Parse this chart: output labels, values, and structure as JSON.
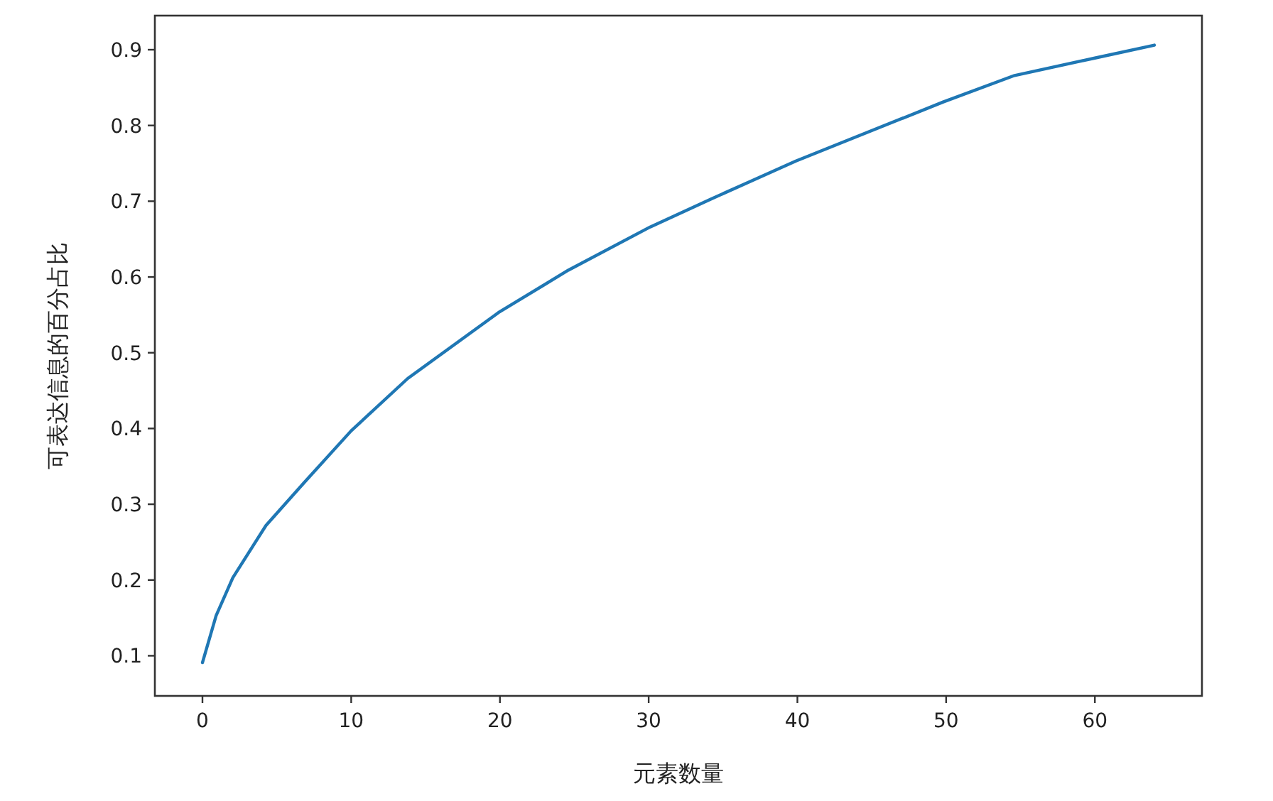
{
  "chart_data": {
    "type": "line",
    "xlabel": "元素数量",
    "ylabel": "可表达信息的百分占比",
    "x": [
      0,
      0.92,
      2.04,
      4.27,
      6.81,
      10.0,
      13.8,
      19.9,
      24.6,
      30.1,
      34.2,
      39.9,
      49.8,
      54.6,
      60,
      64
    ],
    "series": [
      {
        "color": "#1f77b4",
        "values": [
          0.091,
          0.153,
          0.203,
          0.272,
          0.328,
          0.397,
          0.466,
          0.553,
          0.609,
          0.666,
          0.703,
          0.753,
          0.831,
          0.866,
          0.889,
          0.906
        ]
      }
    ],
    "xlim": [
      -3.2,
      67.2
    ],
    "ylim": [
      0.047,
      0.945
    ],
    "xticks": [
      0,
      10,
      20,
      30,
      40,
      50,
      60
    ],
    "yticks": [
      0.1,
      0.2,
      0.3,
      0.4,
      0.5,
      0.6,
      0.7,
      0.8,
      0.9
    ]
  }
}
